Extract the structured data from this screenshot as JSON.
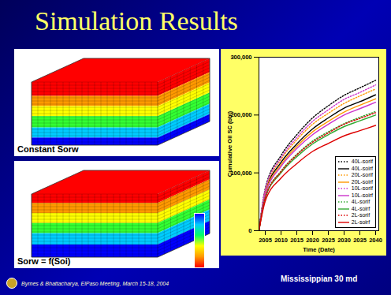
{
  "slide": {
    "title": "Simulation Results",
    "panels": [
      "Constant Sorw",
      "Sorw = f(Soi)"
    ],
    "footer": "Byrnes & Bhattacharya, ElPaso Meeting, March 15-18, 2004",
    "caption": "Mississippian 30 md"
  },
  "chart_data": {
    "type": "line",
    "x_label": "Time (Date)",
    "y_label": "Cumulative Oil SC (bbl)",
    "x": [
      2003,
      2005,
      2010,
      2015,
      2020,
      2025,
      2030,
      2035,
      2040
    ],
    "xlim": [
      2003,
      2041
    ],
    "xticks": [
      2005,
      2010,
      2015,
      2020,
      2025,
      2030,
      2035,
      2040
    ],
    "ylim": [
      0,
      300000
    ],
    "yticks": [
      0,
      {
        "value": 100000,
        "label": "100,000"
      },
      {
        "value": 200000,
        "label": "200,000"
      },
      {
        "value": 300000,
        "label": "300,000"
      }
    ],
    "grid": false,
    "legend": "bottom-right",
    "series": [
      {
        "name": "40L-sorif",
        "color": "#000000",
        "line_style": "dotted",
        "values": [
          0,
          73000,
          130000,
          166000,
          195000,
          216000,
          234000,
          247000,
          260000
        ]
      },
      {
        "name": "40L-soirf",
        "color": "#000000",
        "line_style": "solid",
        "values": [
          0,
          66000,
          118000,
          150000,
          176000,
          195000,
          212000,
          223000,
          235000
        ]
      },
      {
        "name": "20L-sorif",
        "color": "#ff9900",
        "line_style": "dotted",
        "values": [
          0,
          69000,
          123000,
          157000,
          184000,
          203000,
          220000,
          233000,
          245000
        ]
      },
      {
        "name": "20L-soirf",
        "color": "#ff9900",
        "line_style": "solid",
        "values": [
          0,
          64000,
          114000,
          146000,
          171000,
          189000,
          205000,
          217000,
          228000
        ]
      },
      {
        "name": "10L-sorif",
        "color": "#cc33cc",
        "line_style": "dotted",
        "values": [
          0,
          71000,
          126000,
          161000,
          189000,
          209000,
          227000,
          239000,
          252000
        ]
      },
      {
        "name": "10L-soirf",
        "color": "#cc33cc",
        "line_style": "solid",
        "values": [
          0,
          62000,
          111000,
          142000,
          166000,
          184000,
          200000,
          211000,
          222000
        ]
      },
      {
        "name": "4L-sorif",
        "color": "#33aa33",
        "line_style": "dotted",
        "values": [
          0,
          58000,
          103000,
          132000,
          155000,
          171000,
          185000,
          196000,
          206000
        ]
      },
      {
        "name": "4L-soirf",
        "color": "#33aa33",
        "line_style": "solid",
        "values": [
          0,
          56000,
          100000,
          128000,
          150000,
          166000,
          180000,
          190000,
          200000
        ]
      },
      {
        "name": "2L-sorif",
        "color": "#dd0000",
        "line_style": "dotted",
        "values": [
          0,
          57000,
          102000,
          131000,
          153000,
          169000,
          184000,
          194000,
          204000
        ]
      },
      {
        "name": "2L-soirf",
        "color": "#dd0000",
        "line_style": "solid",
        "values": [
          0,
          51000,
          91000,
          116000,
          137000,
          151000,
          164000,
          173000,
          182000
        ]
      }
    ]
  }
}
